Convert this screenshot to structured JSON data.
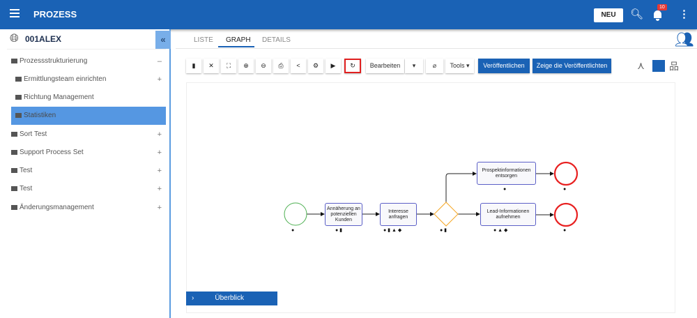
{
  "header": {
    "title": "PROZESS",
    "new_label": "NEU",
    "notification_count": "10"
  },
  "sidebar": {
    "org": "001ALEX",
    "collapse": "«",
    "items": [
      {
        "label": "Prozessstrukturierung",
        "toggle": "–"
      },
      {
        "label": "Ermittlungsteam einrichten",
        "toggle": "+"
      },
      {
        "label": "Richtung Management",
        "toggle": ""
      },
      {
        "label": "Statistiken",
        "toggle": "",
        "selected": true
      },
      {
        "label": "Sort Test",
        "toggle": "+"
      },
      {
        "label": "Support Process Set",
        "toggle": "+"
      },
      {
        "label": "Test",
        "toggle": "+"
      },
      {
        "label": "Test",
        "toggle": "+"
      },
      {
        "label": "Änderungsmanagement",
        "toggle": "+"
      }
    ]
  },
  "tabs": [
    {
      "label": "LISTE"
    },
    {
      "label": "GRAPH",
      "active": true
    },
    {
      "label": "DETAILS"
    }
  ],
  "toolbar": {
    "edit": "Bearbeiten",
    "tools": "Tools ▾",
    "publish": "Veröffentlichen",
    "show_published": "Zeige die Veröffentlichten"
  },
  "diagram": {
    "tasks": [
      "Annäherung an potenziellen Kunden",
      "Interesse anfragen",
      "Prospektinformationen entsorgen",
      "Lead-Informationen aufnehmen"
    ]
  },
  "overview": {
    "label": "Überblick"
  }
}
